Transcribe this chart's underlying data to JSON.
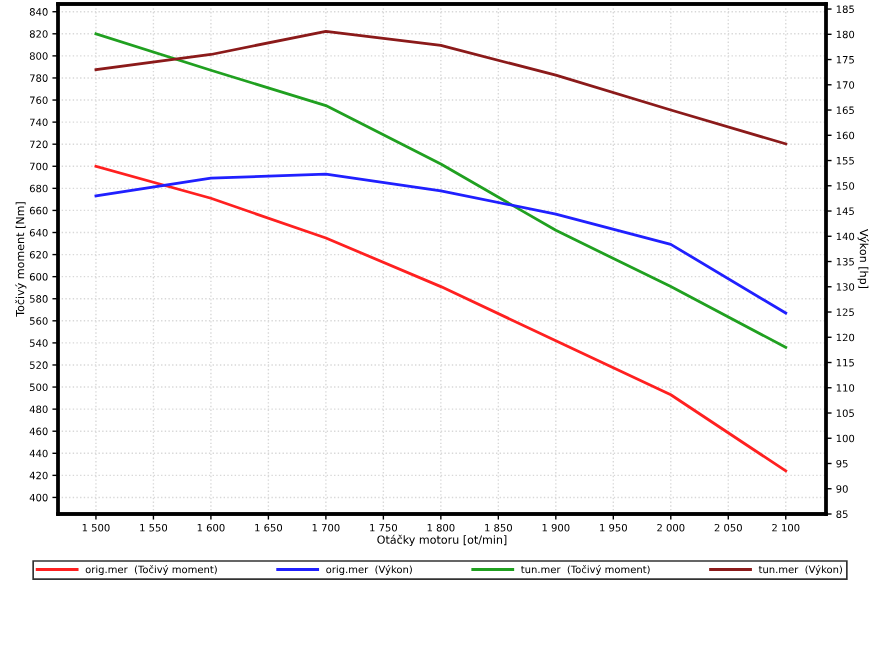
{
  "chart_data": {
    "type": "line",
    "xlabel": "Otáčky motoru [ot/min]",
    "ylabel": "Točivý moment [Nm]",
    "y2label": "Výkon [hp]",
    "x": [
      1500,
      1600,
      1700,
      1800,
      1900,
      2000,
      2100
    ],
    "series": [
      {
        "name": "orig.mer  (Točivý moment)",
        "color": "#ff2020",
        "values": [
          700,
          671,
          635,
          591,
          542,
          493,
          424
        ]
      },
      {
        "name": "orig.mer  (Výkon)",
        "color": "#2020ff",
        "axis": "y2",
        "values": [
          148,
          151.5,
          152.3,
          149,
          144.4,
          138.4,
          124.8
        ]
      },
      {
        "name": "tun.mer  (Točivý moment)",
        "color": "#20a020",
        "values": [
          820,
          787,
          755,
          702,
          642,
          591,
          536
        ]
      },
      {
        "name": "tun.mer  (Výkon)",
        "color": "#8b1a1a",
        "axis": "y2",
        "values": [
          173,
          176,
          180.6,
          177.8,
          171.9,
          165,
          158.3
        ]
      }
    ],
    "xlim": [
      1467,
      2135
    ],
    "xticks": [
      {
        "value": 1500,
        "label": "1 500"
      },
      {
        "value": 1550,
        "label": "1 550"
      },
      {
        "value": 1600,
        "label": "1 600"
      },
      {
        "value": 1650,
        "label": "1 650"
      },
      {
        "value": 1700,
        "label": "1 700"
      },
      {
        "value": 1750,
        "label": "1 750"
      },
      {
        "value": 1800,
        "label": "1 800"
      },
      {
        "value": 1850,
        "label": "1 850"
      },
      {
        "value": 1900,
        "label": "1 900"
      },
      {
        "value": 1950,
        "label": "1 950"
      },
      {
        "value": 2000,
        "label": "2 000"
      },
      {
        "value": 2050,
        "label": "2 050"
      },
      {
        "value": 2100,
        "label": "2 100"
      }
    ],
    "ylim": [
      385,
      847
    ],
    "yticks": [
      400,
      420,
      440,
      460,
      480,
      500,
      520,
      540,
      560,
      580,
      600,
      620,
      640,
      660,
      680,
      700,
      720,
      740,
      760,
      780,
      800,
      820,
      840
    ],
    "y2lim": [
      85,
      186
    ],
    "y2ticks": [
      85,
      90,
      95,
      100,
      105,
      110,
      115,
      120,
      125,
      130,
      135,
      140,
      145,
      150,
      155,
      160,
      165,
      170,
      175,
      180,
      185
    ],
    "grid": true,
    "legend": "bottom",
    "marker": "none",
    "line_style": "solid"
  }
}
